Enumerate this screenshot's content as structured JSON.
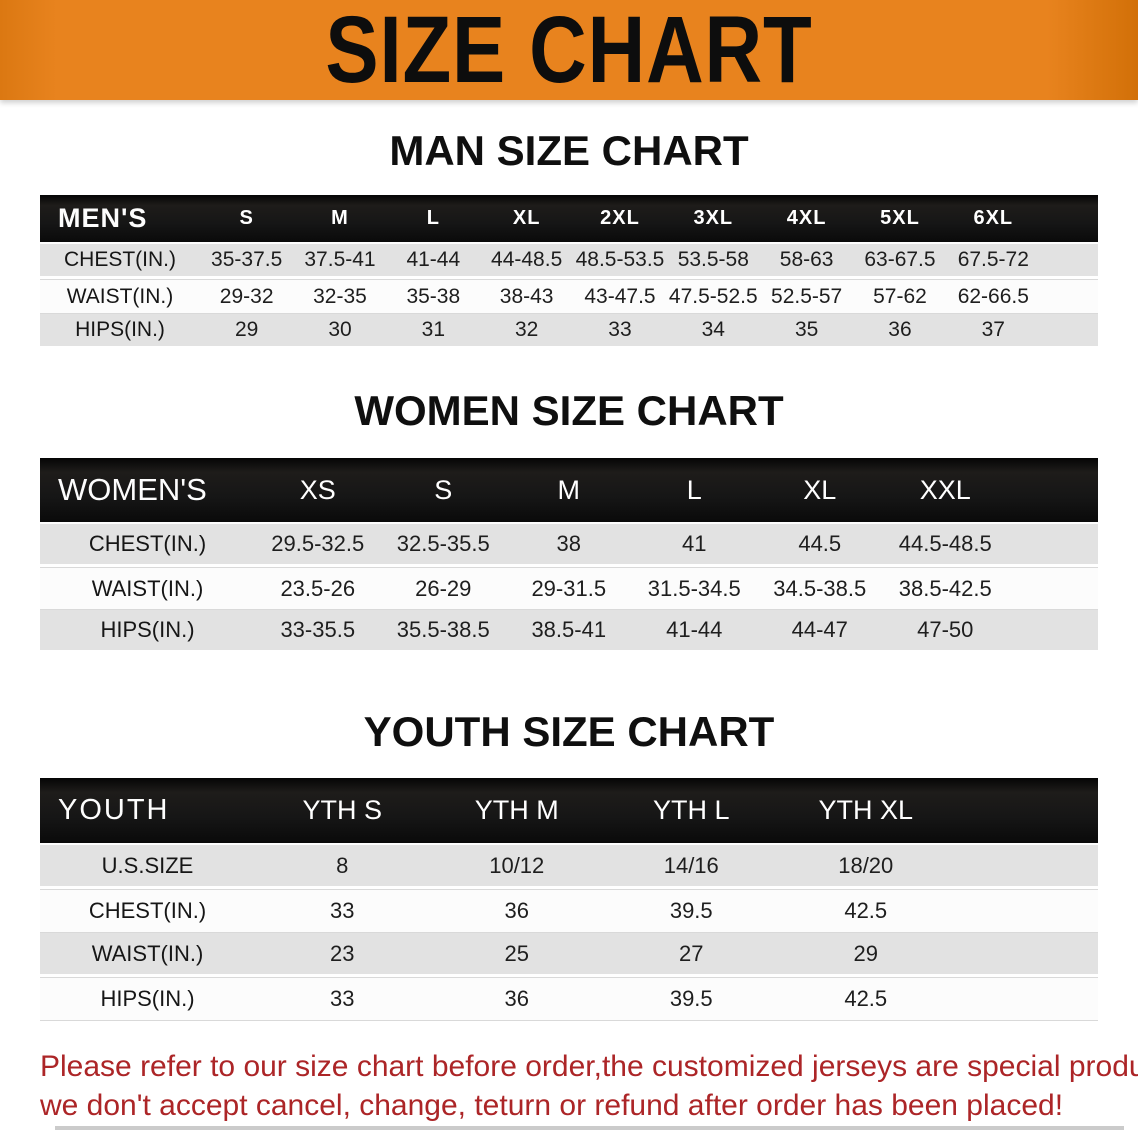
{
  "banner": {
    "title": "SIZE CHART"
  },
  "sections": [
    {
      "heading": "MAN SIZE CHART",
      "table": {
        "corner_label": "MEN'S",
        "columns": [
          "S",
          "M",
          "L",
          "XL",
          "2XL",
          "3XL",
          "4XL",
          "5XL",
          "6XL"
        ],
        "rows": [
          {
            "label": "CHEST(IN.)",
            "values": [
              "35-37.5",
              "37.5-41",
              "41-44",
              "44-48.5",
              "48.5-53.5",
              "53.5-58",
              "58-63",
              "63-67.5",
              "67.5-72"
            ]
          },
          {
            "label": "WAIST(IN.)",
            "values": [
              "29-32",
              "32-35",
              "35-38",
              "38-43",
              "43-47.5",
              "47.5-52.5",
              "52.5-57",
              "57-62",
              "62-66.5"
            ]
          },
          {
            "label": "HIPS(IN.)",
            "values": [
              "29",
              "30",
              "31",
              "32",
              "33",
              "34",
              "35",
              "36",
              "37"
            ]
          }
        ]
      }
    },
    {
      "heading": "WOMEN SIZE CHART",
      "table": {
        "corner_label": "WOMEN'S",
        "columns": [
          "XS",
          "S",
          "M",
          "L",
          "XL",
          "XXL"
        ],
        "rows": [
          {
            "label": "CHEST(IN.)",
            "values": [
              "29.5-32.5",
              "32.5-35.5",
              "38",
              "41",
              "44.5",
              "44.5-48.5"
            ]
          },
          {
            "label": "WAIST(IN.)",
            "values": [
              "23.5-26",
              "26-29",
              "29-31.5",
              "31.5-34.5",
              "34.5-38.5",
              "38.5-42.5"
            ]
          },
          {
            "label": "HIPS(IN.)",
            "values": [
              "33-35.5",
              "35.5-38.5",
              "38.5-41",
              "41-44",
              "44-47",
              "47-50"
            ]
          }
        ]
      }
    },
    {
      "heading": "YOUTH SIZE CHART",
      "table": {
        "corner_label": "YOUTH",
        "columns": [
          "YTH S",
          "YTH M",
          "YTH L",
          "YTH XL"
        ],
        "rows": [
          {
            "label": "U.S.SIZE",
            "values": [
              "8",
              "10/12",
              "14/16",
              "18/20"
            ]
          },
          {
            "label": "CHEST(IN.)",
            "values": [
              "33",
              "36",
              "39.5",
              "42.5"
            ]
          },
          {
            "label": "WAIST(IN.)",
            "values": [
              "23",
              "25",
              "27",
              "29"
            ]
          },
          {
            "label": "HIPS(IN.)",
            "values": [
              "33",
              "36",
              "39.5",
              "42.5"
            ]
          }
        ]
      }
    }
  ],
  "footer": {
    "line1": "Please refer to our size chart before order,the customized jerseys are special products,",
    "line2": "we don't accept cancel, change, teturn or refund after order has been placed!"
  },
  "colors": {
    "banner_bg": "#E8831E",
    "header_bar": "#161616",
    "stripe": "#E2E2E2",
    "footer_red": "#AC2527"
  }
}
